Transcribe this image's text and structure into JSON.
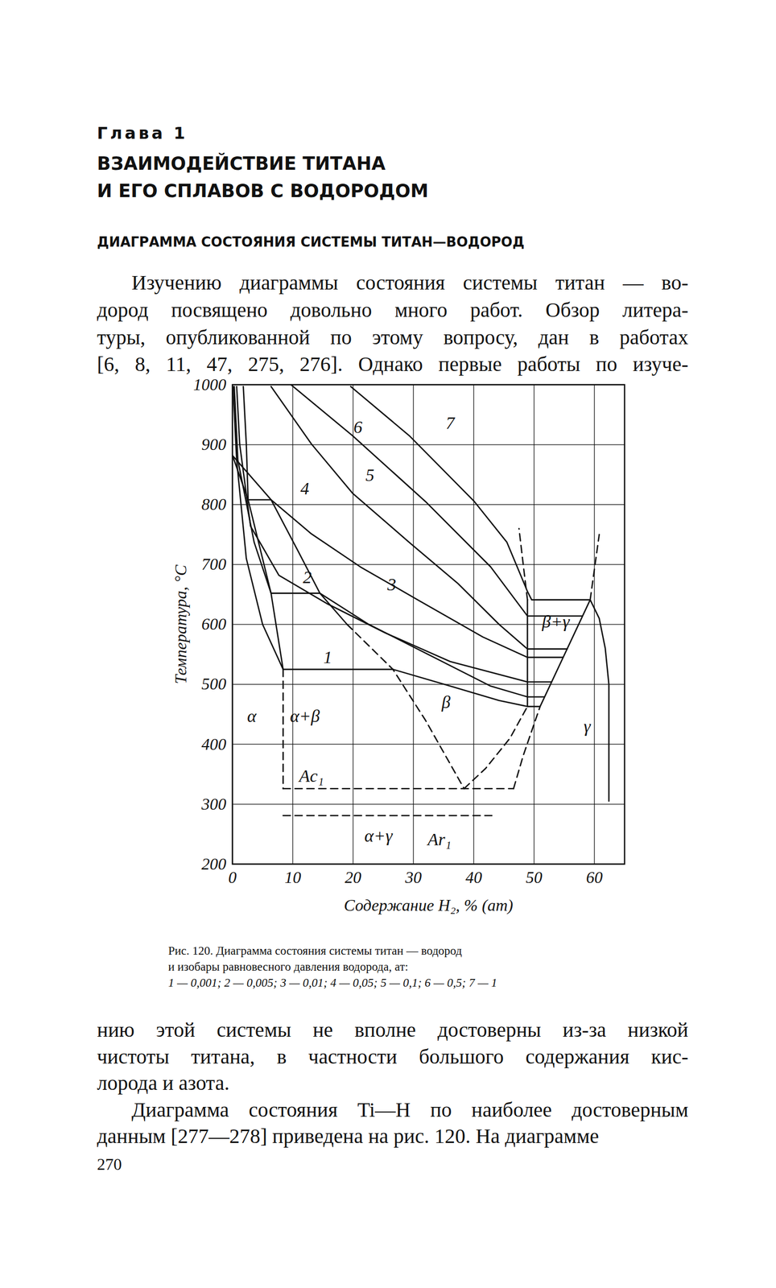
{
  "header": {
    "chapter": "Глава 1",
    "title": [
      "ВЗАИМОДЕЙСТВИЕ ТИТАНА",
      "И ЕГО СПЛАВОВ С ВОДОРОДОМ"
    ],
    "section": "ДИАГРАММА СОСТОЯНИЯ СИСТЕМЫ ТИТАН—ВОДОРОД"
  },
  "paragraphs_before": [
    [
      "Изучению диаграммы состояния системы титан — во-",
      "дород посвящено довольно много работ. Обзор литера-",
      "туры, опубликованной по этому вопросу, дан в работах",
      "[6, 8, 11, 47, 275, 276]. Однако первые работы по изуче-"
    ]
  ],
  "chart_data": {
    "type": "line",
    "xlabel": "Содержание H₂, % (ат)",
    "ylabel": "Температура, °C",
    "xlim": [
      0,
      65
    ],
    "ylim": [
      200,
      1000
    ],
    "xticks": [
      0,
      10,
      20,
      30,
      40,
      50,
      60
    ],
    "yticks": [
      200,
      300,
      400,
      500,
      600,
      700,
      800,
      900,
      1000
    ],
    "grid": true,
    "color": "#111111",
    "series": [
      {
        "line_style": "solid",
        "x": [
          0.1,
          0.7,
          2.3,
          5.0,
          8.4,
          26.6,
          36.1,
          44.2,
          48.9,
          51.0
        ],
        "values": [
          997,
          874,
          710,
          600,
          525,
          525,
          497,
          473,
          463,
          463
        ]
      },
      {
        "line_style": "solid",
        "x": [
          0.3,
          0.9,
          3.6,
          6.4,
          14.5,
          22.6,
          33.4,
          42.8,
          48.9,
          51.7
        ],
        "values": [
          997,
          874,
          737,
          652,
          652,
          600,
          545,
          497,
          479,
          479
        ]
      },
      {
        "line_style": "solid",
        "x": [
          0.7,
          1.2,
          3.0,
          7.7,
          15.8,
          25.3,
          36.1,
          48.9,
          52.9
        ],
        "values": [
          997,
          901,
          764,
          682,
          634,
          586,
          538,
          504,
          504
        ]
      },
      {
        "line_style": "solid",
        "x": [
          1.8,
          2.3,
          2.6,
          6.4,
          13.1,
          21.2,
          30.7,
          41.5,
          48.9,
          54.8
        ],
        "values": [
          997,
          901,
          808,
          808,
          751,
          696,
          641,
          579,
          545,
          545
        ]
      },
      {
        "line_style": "solid",
        "x": [
          6.4,
          13.1,
          19.9,
          29.3,
          37.4,
          44.2,
          48.9,
          55.5
        ],
        "values": [
          997,
          901,
          819,
          737,
          668,
          600,
          559,
          559
        ]
      },
      {
        "line_style": "solid",
        "x": [
          9.7,
          19.9,
          32.0,
          42.8,
          48.9,
          58.0
        ],
        "values": [
          1000,
          915,
          805,
          696,
          614,
          614
        ]
      },
      {
        "line_style": "solid",
        "x": [
          19.6,
          29.3,
          40.1,
          45.5,
          48.9,
          49.6,
          59.3
        ],
        "values": [
          997,
          915,
          805,
          737,
          655,
          641,
          641
        ]
      },
      {
        "line_style": "solid",
        "x": [
          0,
          6.4,
          11,
          14.5,
          19
        ],
        "values": [
          882,
          808,
          720,
          652,
          600
        ]
      },
      {
        "line_style": "dashed",
        "x": [
          19,
          26.6,
          32,
          38.4
        ],
        "values": [
          600,
          525,
          440,
          326
        ]
      },
      {
        "line_style": "solid",
        "x": [
          0,
          2.6,
          6.4,
          8.4
        ],
        "values": [
          882,
          808,
          652,
          525
        ]
      },
      {
        "line_style": "dashed",
        "x": [
          8.4,
          8.4
        ],
        "values": [
          525,
          326
        ]
      },
      {
        "line_style": "dashed",
        "x": [
          8.4,
          46.6
        ],
        "values": [
          326,
          326
        ]
      },
      {
        "line_style": "dashed",
        "x": [
          8.4,
          43
        ],
        "values": [
          281,
          281
        ]
      },
      {
        "line_style": "dashed",
        "x": [
          38.4,
          42,
          46,
          48.9
        ],
        "values": [
          326,
          360,
          410,
          463
        ]
      },
      {
        "line_style": "solid",
        "x": [
          48.9,
          48.9
        ],
        "values": [
          463,
          641
        ]
      },
      {
        "line_style": "dashed",
        "x": [
          48.9,
          48.2,
          47.5
        ],
        "values": [
          641,
          700,
          760
        ]
      },
      {
        "line_style": "dashed",
        "x": [
          46.6,
          48.2,
          51
        ],
        "values": [
          326,
          381,
          463
        ]
      },
      {
        "line_style": "solid",
        "x": [
          51,
          59.3
        ],
        "values": [
          463,
          641
        ]
      },
      {
        "line_style": "dashed",
        "x": [
          59.3,
          60.8
        ],
        "values": [
          641,
          750
        ]
      },
      {
        "line_style": "solid",
        "x": [
          59.3,
          60.8,
          61.8,
          62.4,
          62.4
        ],
        "values": [
          641,
          610,
          560,
          500,
          305
        ]
      }
    ],
    "annotations": [
      {
        "text": "α",
        "x": 3.2,
        "y": 447
      },
      {
        "text": "α+β",
        "x": 12.0,
        "y": 447
      },
      {
        "text": "β",
        "x": 35.4,
        "y": 470
      },
      {
        "text": "β+γ",
        "x": 53.6,
        "y": 604
      },
      {
        "text": "γ",
        "x": 58.8,
        "y": 429
      },
      {
        "text": "α+γ",
        "x": 24.2,
        "y": 247
      },
      {
        "text": "Ac₁",
        "x": 13.1,
        "y": 347
      },
      {
        "text": "Ar₁",
        "x": 34.3,
        "y": 241
      },
      {
        "text": "1",
        "x": 15.8,
        "y": 545
      },
      {
        "text": "2",
        "x": 12.4,
        "y": 678
      },
      {
        "text": "3",
        "x": 26.4,
        "y": 666
      },
      {
        "text": "4",
        "x": 12.0,
        "y": 826
      },
      {
        "text": "5",
        "x": 22.8,
        "y": 849
      },
      {
        "text": "6",
        "x": 20.8,
        "y": 929
      },
      {
        "text": "7",
        "x": 36.1,
        "y": 936
      }
    ]
  },
  "caption": [
    "Рис. 120. Диаграмма состояния системы титан — водород",
    "и изобары равновесного давления водорода, ат:",
    "1 — 0,001; 2 — 0,005; 3 — 0,01; 4 — 0,05; 5 — 0,1; 6 — 0,5; 7 — 1"
  ],
  "paragraphs_after": [
    [
      "нию этой системы не вполне достоверны из-за низкой",
      "чистоты титана, в частности большого содержания кис-",
      "лорода и азота."
    ],
    [
      "Диаграмма состояния Ti—H по наиболее достоверным",
      "данным [277—278] приведена на рис. 120. На диаграмме"
    ]
  ],
  "page_number": 270
}
